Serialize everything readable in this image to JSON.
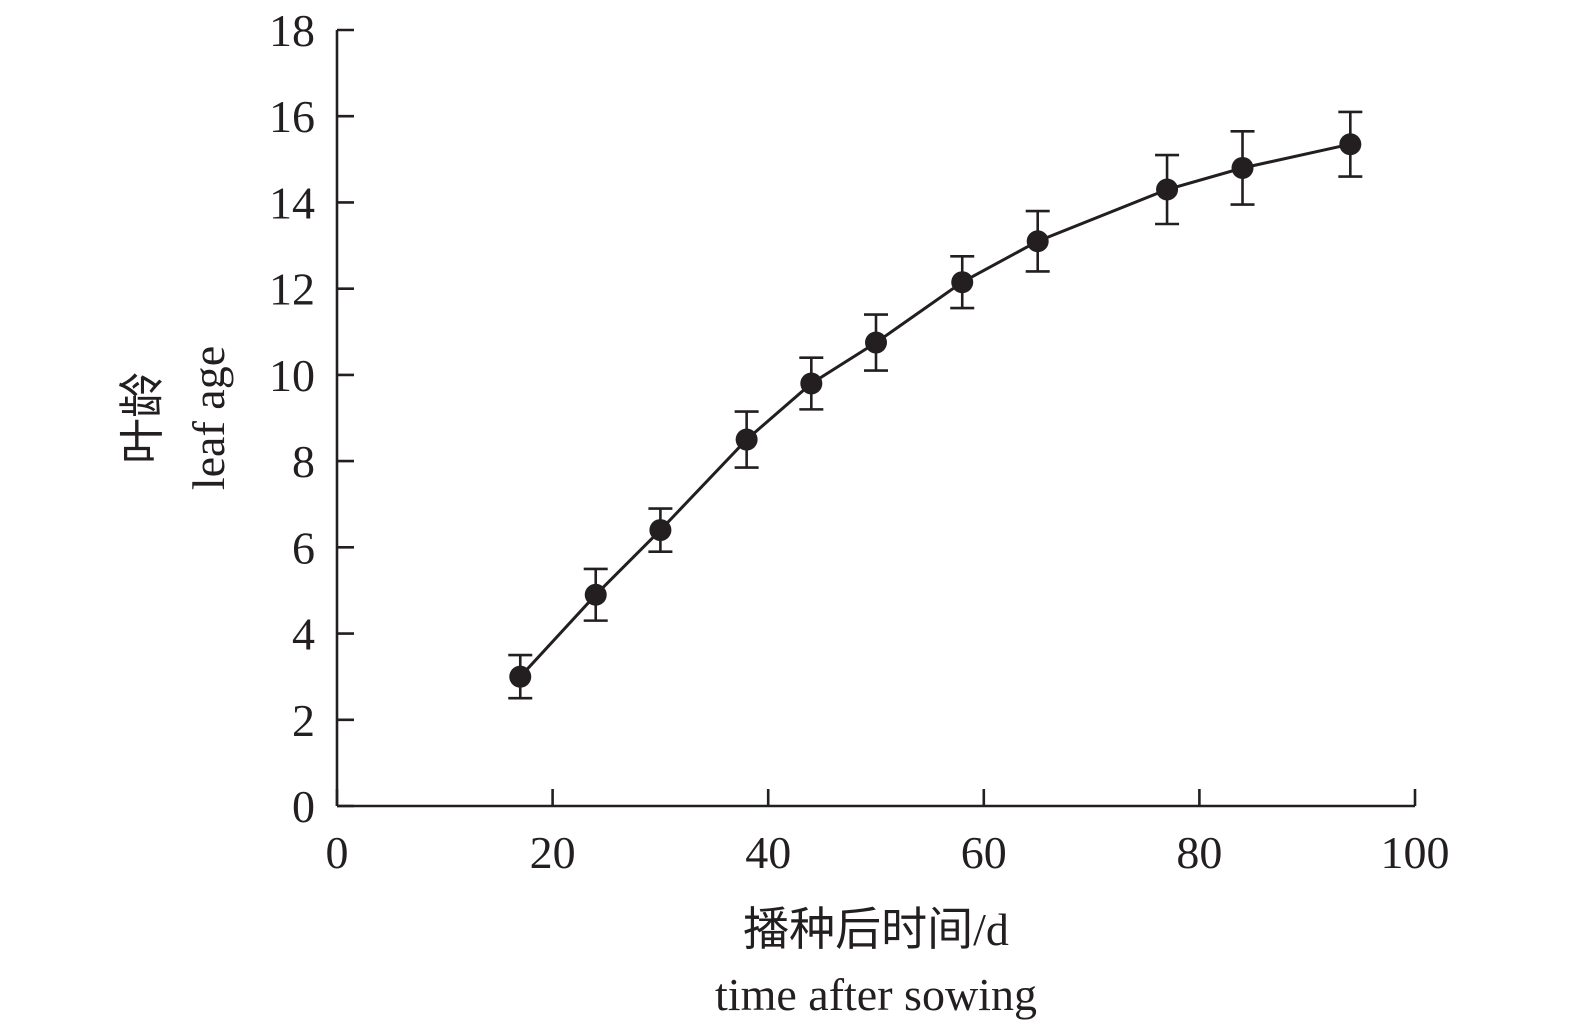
{
  "chart_data": {
    "type": "line",
    "xlabel_cn": "播种后时间/d",
    "xlabel_en": "time after sowing",
    "ylabel_cn": "叶龄",
    "ylabel_en": "leaf age",
    "xlim": [
      0,
      100
    ],
    "ylim": [
      0,
      18
    ],
    "xticks": [
      0,
      20,
      40,
      60,
      80,
      100
    ],
    "yticks": [
      0,
      2,
      4,
      6,
      8,
      10,
      12,
      14,
      16,
      18
    ],
    "grid": false,
    "series": [
      {
        "color": "#231f20",
        "marker": "filled-circle",
        "error_bars": true,
        "points": [
          {
            "x": 17,
            "y": 3.0,
            "err": 0.5
          },
          {
            "x": 24,
            "y": 4.9,
            "err": 0.6
          },
          {
            "x": 30,
            "y": 6.4,
            "err": 0.5
          },
          {
            "x": 38,
            "y": 8.5,
            "err": 0.65
          },
          {
            "x": 44,
            "y": 9.8,
            "err": 0.6
          },
          {
            "x": 50,
            "y": 10.75,
            "err": 0.65
          },
          {
            "x": 58,
            "y": 12.15,
            "err": 0.6
          },
          {
            "x": 65,
            "y": 13.1,
            "err": 0.7
          },
          {
            "x": 77,
            "y": 14.3,
            "err": 0.8
          },
          {
            "x": 84,
            "y": 14.8,
            "err": 0.85
          },
          {
            "x": 94,
            "y": 15.35,
            "err": 0.75
          }
        ]
      }
    ]
  }
}
